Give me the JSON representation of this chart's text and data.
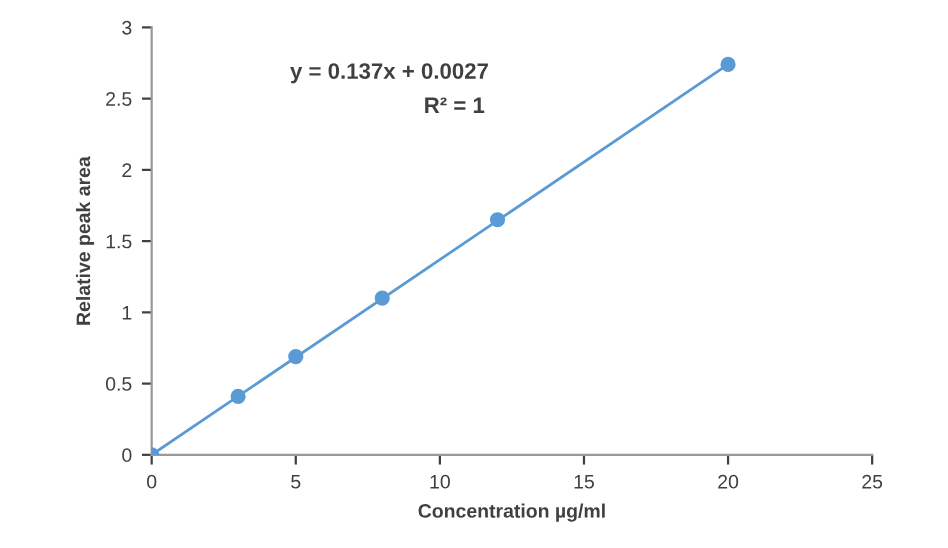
{
  "chart_data": {
    "type": "scatter",
    "xlabel": "Concentration µg/ml",
    "ylabel": "Relative peak area",
    "annotations": [
      "y = 0.137x + 0.0027",
      "R² = 1"
    ],
    "series": [
      {
        "color": "#5b9bd5",
        "x": [
          0,
          3,
          5,
          8,
          12,
          20
        ],
        "values": [
          0,
          0.41,
          0.69,
          1.1,
          1.65,
          2.74
        ],
        "marker": "circle"
      },
      {
        "type": "line",
        "color": "#5b9bd5",
        "x": [
          0,
          20
        ],
        "values": [
          0,
          2.74
        ],
        "marker": "none"
      }
    ],
    "xlim": [
      0,
      25
    ],
    "xticks": [
      0,
      5,
      10,
      15,
      20,
      25
    ],
    "ylim": [
      0,
      3
    ],
    "yticks": [
      0,
      0.5,
      1,
      1.5,
      2,
      2.5,
      3
    ],
    "grid": false,
    "legend": false
  }
}
